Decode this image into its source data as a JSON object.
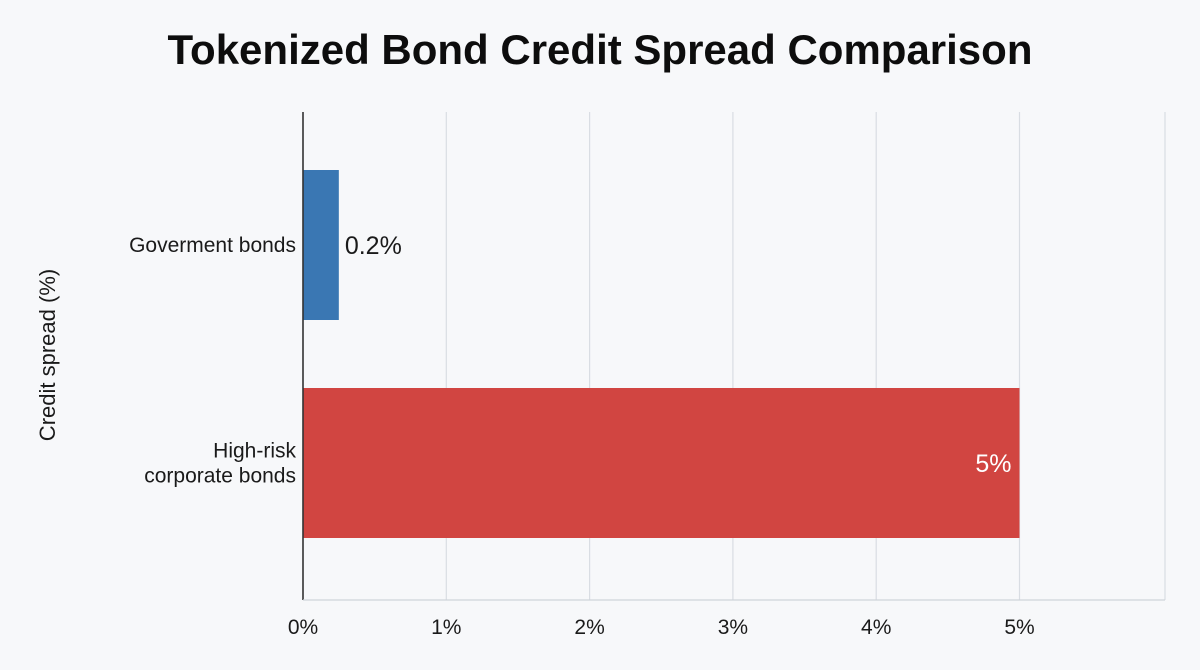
{
  "chart_data": {
    "type": "bar",
    "orientation": "horizontal",
    "title": "Tokenized Bond Credit Spread Comparison",
    "xlabel": "",
    "ylabel": "Credit spread (%)",
    "categories": [
      [
        "Goverment bonds"
      ],
      [
        "High-risk",
        "corporate bonds"
      ]
    ],
    "values": [
      0.25,
      5
    ],
    "data_labels": [
      "0.2%",
      "5%"
    ],
    "bar_colors": [
      "#3a77b3",
      "#d14541"
    ],
    "data_label_colors": [
      "#1a1a1a",
      "#ffffff"
    ],
    "data_label_position": [
      "outside",
      "inside-end"
    ],
    "xlim": [
      0,
      6
    ],
    "x_ticks": [
      0,
      1,
      2,
      3,
      4,
      5
    ],
    "x_tick_labels": [
      "0%",
      "1%",
      "2%",
      "3%",
      "4%",
      "5%"
    ],
    "grid": true,
    "legend": "none"
  }
}
